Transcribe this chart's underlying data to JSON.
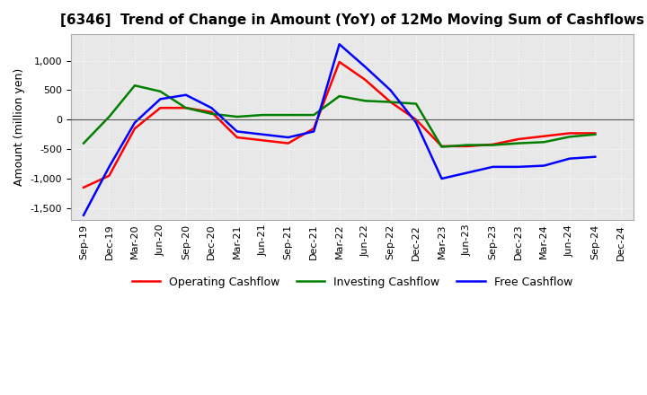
{
  "title": "[6346]  Trend of Change in Amount (YoY) of 12Mo Moving Sum of Cashflows",
  "ylabel": "Amount (million yen)",
  "ylim": [
    -1700,
    1450
  ],
  "yticks": [
    -1500,
    -1000,
    -500,
    0,
    500,
    1000
  ],
  "plot_bg_color": "#e8e8e8",
  "fig_bg_color": "#ffffff",
  "grid_color": "#ffffff",
  "x_labels": [
    "Sep-19",
    "Dec-19",
    "Mar-20",
    "Jun-20",
    "Sep-20",
    "Dec-20",
    "Mar-21",
    "Jun-21",
    "Sep-21",
    "Dec-21",
    "Mar-22",
    "Jun-22",
    "Sep-22",
    "Dec-22",
    "Mar-23",
    "Jun-23",
    "Sep-23",
    "Dec-23",
    "Mar-24",
    "Jun-24",
    "Sep-24",
    "Dec-24"
  ],
  "operating": [
    -1150,
    -950,
    -150,
    200,
    200,
    130,
    -300,
    -350,
    -400,
    -150,
    980,
    680,
    300,
    0,
    -450,
    -450,
    -420,
    -330,
    -280,
    -230,
    -230,
    null
  ],
  "investing": [
    -400,
    50,
    580,
    480,
    200,
    100,
    50,
    80,
    80,
    80,
    400,
    320,
    300,
    270,
    -460,
    -430,
    -430,
    -400,
    -380,
    -290,
    -250,
    null
  ],
  "free": [
    -1620,
    -800,
    -50,
    350,
    420,
    200,
    -200,
    -250,
    -300,
    -200,
    1280,
    900,
    500,
    -50,
    -1000,
    -900,
    -800,
    -800,
    -780,
    -660,
    -630,
    null
  ],
  "operating_color": "#ff0000",
  "investing_color": "#008000",
  "free_color": "#0000ff",
  "line_width": 1.8,
  "title_fontsize": 11,
  "tick_fontsize": 8,
  "legend_fontsize": 9
}
